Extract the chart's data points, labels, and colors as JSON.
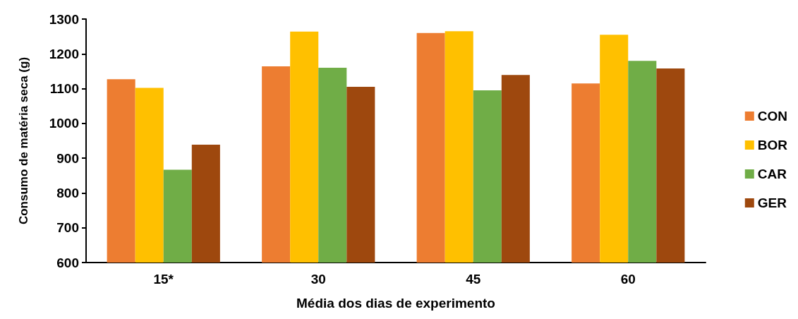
{
  "chart_data": {
    "type": "bar",
    "xlabel": "Média dos dias de experimento",
    "ylabel": "Consumo de matéria seca (g)",
    "categories": [
      "15*",
      "30",
      "45",
      "60"
    ],
    "series": [
      {
        "name": "CON",
        "color": "#ed7d31",
        "values": [
          1127,
          1164,
          1260,
          1115
        ]
      },
      {
        "name": "BOR",
        "color": "#ffc000",
        "values": [
          1102,
          1264,
          1265,
          1255
        ]
      },
      {
        "name": "CAR",
        "color": "#70ad47",
        "values": [
          867,
          1160,
          1095,
          1180
        ]
      },
      {
        "name": "GER",
        "color": "#9e480e",
        "values": [
          939,
          1105,
          1139,
          1158
        ]
      }
    ],
    "ylim": [
      600,
      1300
    ],
    "yticks": [
      600,
      700,
      800,
      900,
      1000,
      1100,
      1200,
      1300
    ],
    "grid": false,
    "legend": "right"
  }
}
